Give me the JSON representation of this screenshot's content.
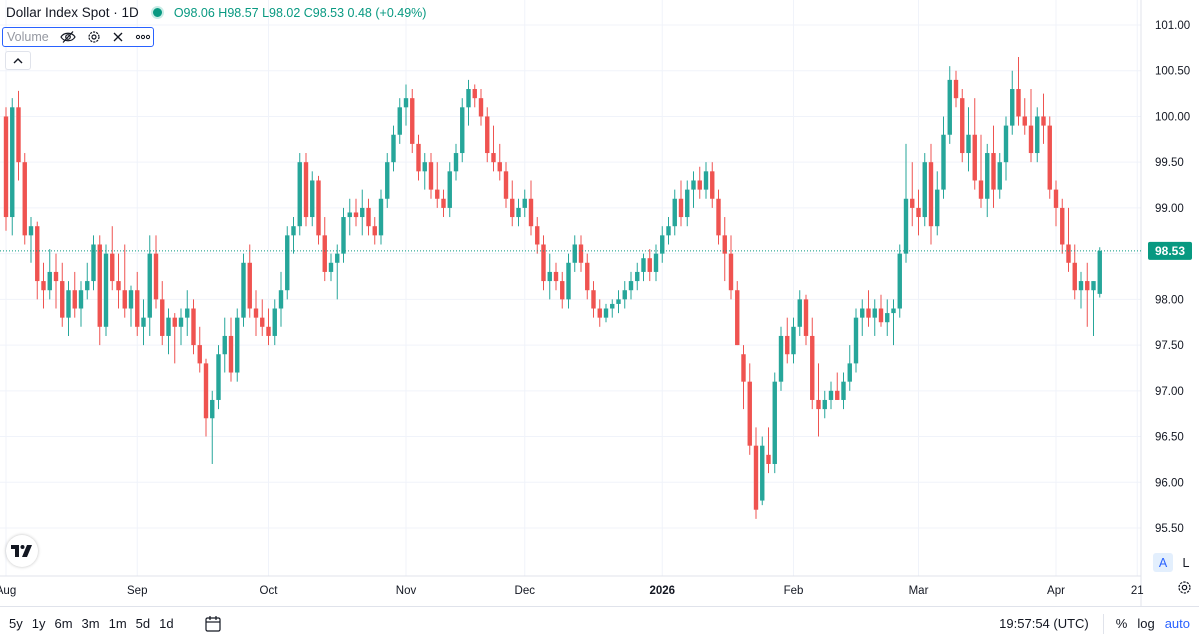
{
  "legend": {
    "title": "Dollar Index Spot · 1D",
    "ohlc": "O98.06 H98.57 L98.02 C98.53 0.48 (+0.49%)"
  },
  "indicator": {
    "label": "Volume"
  },
  "price_label": "98.53",
  "scale_buttons": {
    "auto": "A",
    "log": "L"
  },
  "bottom_bar": {
    "ranges": [
      "5y",
      "1y",
      "6m",
      "3m",
      "1m",
      "5d",
      "1d"
    ],
    "clock": "19:57:54 (UTC)",
    "percent": "%",
    "log": "log",
    "auto": "auto"
  },
  "colors": {
    "up": "#26a69a",
    "down": "#ef5350",
    "grid": "#f0f3fa",
    "accent": "#2962ff"
  },
  "chart_data": {
    "type": "candlestick",
    "title": "Dollar Index Spot · 1D",
    "ylim": [
      95.3,
      101.1
    ],
    "y_ticks": [
      "101.00",
      "100.50",
      "100.00",
      "99.50",
      "99.00",
      "98.50",
      "98.00",
      "97.50",
      "97.00",
      "96.50",
      "96.00",
      "95.50"
    ],
    "x_ticks": [
      {
        "label": "Aug",
        "index": 0
      },
      {
        "label": "Sep",
        "index": 21
      },
      {
        "label": "Oct",
        "index": 42
      },
      {
        "label": "Nov",
        "index": 64
      },
      {
        "label": "Dec",
        "index": 83
      },
      {
        "label": "2026",
        "index": 105
      },
      {
        "label": "Feb",
        "index": 126
      },
      {
        "label": "Mar",
        "index": 146
      },
      {
        "label": "Apr",
        "index": 168
      },
      {
        "label": "21",
        "index": 181
      }
    ],
    "last_close": 98.53,
    "candles": [
      [
        100.0,
        100.1,
        98.75,
        98.9
      ],
      [
        98.9,
        100.2,
        98.7,
        100.1
      ],
      [
        100.1,
        100.28,
        99.3,
        99.5
      ],
      [
        99.5,
        99.6,
        98.6,
        98.7
      ],
      [
        98.7,
        98.9,
        98.4,
        98.8
      ],
      [
        98.8,
        98.85,
        98.0,
        98.2
      ],
      [
        98.2,
        98.4,
        97.9,
        98.1
      ],
      [
        98.1,
        98.55,
        98.0,
        98.3
      ],
      [
        98.3,
        98.5,
        97.9,
        98.2
      ],
      [
        98.2,
        98.4,
        97.7,
        97.8
      ],
      [
        97.8,
        98.2,
        97.6,
        98.1
      ],
      [
        98.1,
        98.3,
        97.8,
        97.9
      ],
      [
        97.9,
        98.2,
        97.7,
        98.1
      ],
      [
        98.1,
        98.4,
        98.0,
        98.2
      ],
      [
        98.2,
        98.7,
        98.1,
        98.6
      ],
      [
        98.6,
        98.7,
        97.5,
        97.7
      ],
      [
        97.7,
        98.6,
        97.6,
        98.5
      ],
      [
        98.5,
        98.8,
        98.1,
        98.2
      ],
      [
        98.2,
        98.5,
        97.9,
        98.1
      ],
      [
        98.1,
        98.6,
        97.8,
        97.9
      ],
      [
        97.9,
        98.15,
        97.7,
        98.1
      ],
      [
        98.1,
        98.3,
        97.6,
        97.7
      ],
      [
        97.7,
        98.0,
        97.5,
        97.8
      ],
      [
        97.8,
        98.7,
        97.6,
        98.5
      ],
      [
        98.5,
        98.7,
        97.9,
        98.0
      ],
      [
        98.0,
        98.2,
        97.5,
        97.6
      ],
      [
        97.6,
        97.9,
        97.4,
        97.8
      ],
      [
        97.8,
        97.85,
        97.3,
        97.7
      ],
      [
        97.7,
        97.9,
        97.5,
        97.8
      ],
      [
        97.8,
        98.1,
        97.6,
        97.9
      ],
      [
        97.9,
        98.0,
        97.4,
        97.5
      ],
      [
        97.5,
        97.7,
        97.2,
        97.3
      ],
      [
        97.3,
        97.35,
        96.5,
        96.7
      ],
      [
        96.7,
        97.0,
        96.2,
        96.9
      ],
      [
        96.9,
        97.5,
        96.8,
        97.4
      ],
      [
        97.4,
        97.8,
        97.2,
        97.6
      ],
      [
        97.6,
        97.8,
        97.1,
        97.2
      ],
      [
        97.2,
        97.9,
        97.1,
        97.8
      ],
      [
        97.8,
        98.5,
        97.7,
        98.4
      ],
      [
        98.4,
        98.6,
        97.8,
        97.9
      ],
      [
        97.9,
        98.1,
        97.6,
        97.8
      ],
      [
        97.8,
        98.0,
        97.6,
        97.7
      ],
      [
        97.7,
        97.9,
        97.5,
        97.6
      ],
      [
        97.6,
        98.0,
        97.5,
        97.9
      ],
      [
        97.9,
        98.3,
        97.7,
        98.1
      ],
      [
        98.1,
        98.8,
        98.0,
        98.7
      ],
      [
        98.7,
        98.9,
        98.5,
        98.8
      ],
      [
        98.8,
        99.6,
        98.7,
        99.5
      ],
      [
        99.5,
        99.6,
        98.8,
        98.9
      ],
      [
        98.9,
        99.4,
        98.8,
        99.3
      ],
      [
        99.3,
        99.35,
        98.6,
        98.7
      ],
      [
        98.7,
        98.9,
        98.2,
        98.3
      ],
      [
        98.3,
        98.5,
        98.2,
        98.4
      ],
      [
        98.4,
        98.6,
        98.0,
        98.5
      ],
      [
        98.5,
        99.0,
        98.4,
        98.9
      ],
      [
        98.9,
        99.1,
        98.7,
        98.95
      ],
      [
        98.95,
        99.1,
        98.8,
        98.9
      ],
      [
        98.9,
        99.2,
        98.7,
        99.0
      ],
      [
        99.0,
        99.1,
        98.7,
        98.8
      ],
      [
        98.8,
        98.9,
        98.6,
        98.7
      ],
      [
        98.7,
        99.2,
        98.6,
        99.1
      ],
      [
        99.1,
        99.6,
        99.0,
        99.5
      ],
      [
        99.5,
        99.9,
        99.4,
        99.8
      ],
      [
        99.8,
        100.2,
        99.7,
        100.1
      ],
      [
        100.1,
        100.35,
        99.9,
        100.2
      ],
      [
        100.2,
        100.3,
        99.6,
        99.7
      ],
      [
        99.7,
        99.8,
        99.3,
        99.4
      ],
      [
        99.4,
        99.6,
        99.2,
        99.5
      ],
      [
        99.5,
        99.6,
        99.1,
        99.2
      ],
      [
        99.2,
        99.5,
        99.0,
        99.1
      ],
      [
        99.1,
        99.2,
        98.9,
        99.0
      ],
      [
        99.0,
        99.5,
        98.9,
        99.4
      ],
      [
        99.4,
        99.7,
        99.3,
        99.6
      ],
      [
        99.6,
        100.2,
        99.5,
        100.1
      ],
      [
        100.1,
        100.4,
        99.9,
        100.3
      ],
      [
        100.3,
        100.35,
        100.1,
        100.2
      ],
      [
        100.2,
        100.3,
        99.9,
        100.0
      ],
      [
        100.0,
        100.1,
        99.5,
        99.6
      ],
      [
        99.6,
        99.9,
        99.4,
        99.5
      ],
      [
        99.5,
        99.7,
        99.3,
        99.4
      ],
      [
        99.4,
        99.5,
        99.0,
        99.1
      ],
      [
        99.1,
        99.3,
        98.8,
        98.9
      ],
      [
        98.9,
        99.1,
        98.8,
        99.0
      ],
      [
        99.0,
        99.2,
        98.9,
        99.1
      ],
      [
        99.1,
        99.3,
        98.7,
        98.8
      ],
      [
        98.8,
        98.9,
        98.5,
        98.6
      ],
      [
        98.6,
        98.7,
        98.1,
        98.2
      ],
      [
        98.2,
        98.5,
        98.0,
        98.3
      ],
      [
        98.3,
        98.4,
        98.1,
        98.2
      ],
      [
        98.2,
        98.3,
        97.9,
        98.0
      ],
      [
        98.0,
        98.5,
        97.9,
        98.4
      ],
      [
        98.4,
        98.7,
        98.3,
        98.6
      ],
      [
        98.6,
        98.7,
        98.3,
        98.4
      ],
      [
        98.4,
        98.5,
        98.0,
        98.1
      ],
      [
        98.1,
        98.2,
        97.8,
        97.9
      ],
      [
        97.9,
        98.0,
        97.7,
        97.8
      ],
      [
        97.8,
        97.95,
        97.75,
        97.9
      ],
      [
        97.9,
        98.0,
        97.8,
        97.95
      ],
      [
        97.95,
        98.1,
        97.85,
        98.0
      ],
      [
        98.0,
        98.2,
        97.9,
        98.1
      ],
      [
        98.1,
        98.3,
        98.0,
        98.2
      ],
      [
        98.2,
        98.4,
        98.1,
        98.3
      ],
      [
        98.3,
        98.5,
        98.2,
        98.45
      ],
      [
        98.45,
        98.55,
        98.2,
        98.3
      ],
      [
        98.3,
        98.6,
        98.2,
        98.5
      ],
      [
        98.5,
        98.8,
        98.4,
        98.7
      ],
      [
        98.7,
        98.9,
        98.6,
        98.8
      ],
      [
        98.8,
        99.2,
        98.7,
        99.1
      ],
      [
        99.1,
        99.3,
        98.8,
        98.9
      ],
      [
        98.9,
        99.3,
        98.8,
        99.2
      ],
      [
        99.2,
        99.4,
        99.0,
        99.3
      ],
      [
        99.3,
        99.45,
        99.1,
        99.2
      ],
      [
        99.2,
        99.5,
        99.1,
        99.4
      ],
      [
        99.4,
        99.5,
        99.0,
        99.1
      ],
      [
        99.1,
        99.2,
        98.6,
        98.7
      ],
      [
        98.7,
        98.9,
        98.2,
        98.5
      ],
      [
        98.5,
        98.7,
        98.0,
        98.1
      ],
      [
        98.1,
        98.2,
        97.5,
        97.5
      ],
      [
        97.4,
        97.5,
        96.8,
        97.1
      ],
      [
        97.1,
        97.3,
        96.3,
        96.4
      ],
      [
        96.4,
        96.6,
        95.6,
        95.7
      ],
      [
        95.8,
        96.5,
        95.75,
        96.4
      ],
      [
        96.3,
        96.6,
        96.1,
        96.2
      ],
      [
        96.2,
        97.2,
        96.1,
        97.1
      ],
      [
        97.1,
        97.7,
        97.0,
        97.6
      ],
      [
        97.6,
        97.8,
        97.3,
        97.4
      ],
      [
        97.4,
        97.8,
        97.3,
        97.7
      ],
      [
        97.7,
        98.1,
        97.6,
        98.0
      ],
      [
        98.0,
        98.05,
        97.5,
        97.6
      ],
      [
        97.6,
        97.8,
        96.8,
        96.9
      ],
      [
        96.9,
        97.3,
        96.5,
        96.8
      ],
      [
        96.8,
        97.0,
        96.7,
        96.9
      ],
      [
        96.9,
        97.1,
        96.8,
        97.0
      ],
      [
        97.0,
        97.2,
        96.9,
        96.9
      ],
      [
        96.9,
        97.2,
        96.8,
        97.1
      ],
      [
        97.1,
        97.5,
        97.0,
        97.3
      ],
      [
        97.3,
        97.9,
        97.2,
        97.8
      ],
      [
        97.8,
        98.0,
        97.6,
        97.9
      ],
      [
        97.9,
        98.1,
        97.7,
        97.8
      ],
      [
        97.8,
        98.0,
        97.6,
        97.9
      ],
      [
        97.9,
        98.05,
        97.7,
        97.75
      ],
      [
        97.75,
        98.0,
        97.6,
        97.85
      ],
      [
        97.85,
        98.0,
        97.5,
        97.9
      ],
      [
        97.9,
        98.6,
        97.8,
        98.5
      ],
      [
        98.5,
        99.7,
        98.4,
        99.1
      ],
      [
        99.1,
        99.5,
        98.8,
        99.0
      ],
      [
        99.0,
        99.2,
        98.7,
        98.9
      ],
      [
        98.9,
        99.6,
        98.8,
        99.5
      ],
      [
        99.5,
        99.7,
        98.6,
        98.8
      ],
      [
        98.8,
        99.4,
        98.7,
        99.2
      ],
      [
        99.2,
        100.0,
        99.1,
        99.8
      ],
      [
        99.8,
        100.55,
        99.7,
        100.4
      ],
      [
        100.4,
        100.5,
        100.1,
        100.2
      ],
      [
        100.2,
        100.3,
        99.5,
        99.6
      ],
      [
        99.6,
        100.1,
        99.4,
        99.8
      ],
      [
        99.8,
        100.2,
        99.2,
        99.3
      ],
      [
        99.3,
        99.8,
        99.0,
        99.1
      ],
      [
        99.1,
        99.7,
        98.9,
        99.6
      ],
      [
        99.6,
        99.9,
        99.0,
        99.2
      ],
      [
        99.2,
        99.6,
        99.1,
        99.5
      ],
      [
        99.5,
        100.0,
        99.3,
        99.9
      ],
      [
        99.9,
        100.5,
        99.8,
        100.3
      ],
      [
        100.3,
        100.65,
        99.9,
        100.0
      ],
      [
        100.0,
        100.2,
        99.8,
        99.9
      ],
      [
        99.9,
        100.3,
        99.5,
        99.6
      ],
      [
        99.6,
        100.1,
        99.5,
        100.0
      ],
      [
        100.0,
        100.25,
        99.7,
        99.9
      ],
      [
        99.9,
        100.0,
        99.1,
        99.2
      ],
      [
        99.2,
        99.3,
        98.8,
        99.0
      ],
      [
        99.0,
        99.1,
        98.5,
        98.6
      ],
      [
        98.6,
        99.0,
        98.3,
        98.4
      ],
      [
        98.4,
        98.6,
        98.0,
        98.1
      ],
      [
        98.1,
        98.3,
        97.9,
        98.2
      ],
      [
        98.2,
        98.4,
        97.7,
        98.1
      ],
      [
        98.1,
        98.2,
        97.6,
        98.2
      ],
      [
        98.06,
        98.57,
        98.02,
        98.53
      ]
    ]
  }
}
